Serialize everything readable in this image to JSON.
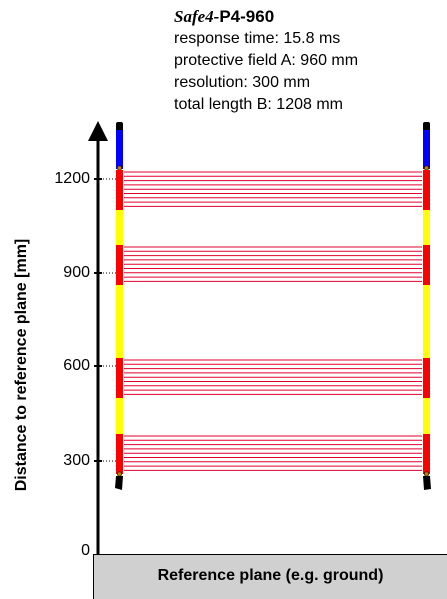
{
  "device": {
    "brand": "Safe4-",
    "model": "P4-960",
    "response_time": "response  time: 15.8 ms",
    "protective_field": "protective field A: 960 mm",
    "resolution": "resolution: 300 mm",
    "total_length": "total length B: 1208 mm"
  },
  "axis": {
    "label": "Distance to reference plane [mm]",
    "ticks": [
      "1200",
      "900",
      "600",
      "300",
      "0"
    ]
  },
  "reference_plane": {
    "label": "Reference plane (e.g. ground)"
  },
  "colors": {
    "red": "#ff0000",
    "yellow": "#ffff00",
    "blue": "#0000ff",
    "beam": "#e00030",
    "housing": "#000000"
  },
  "beam_groups": 4,
  "beams_per_group": 9
}
